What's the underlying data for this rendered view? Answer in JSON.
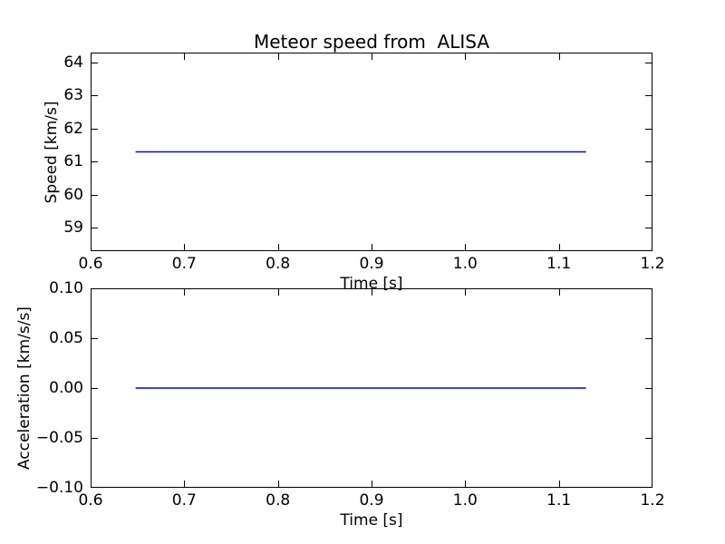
{
  "figure": {
    "background": "#ffffff",
    "line_color": "#0000ff",
    "axis_color": "#000000"
  },
  "chart_data": [
    {
      "type": "line",
      "title": "Meteor speed from  ALISA",
      "xlabel": "Time [s]",
      "ylabel": "Speed [km/s]",
      "xlim": [
        0.6,
        1.2
      ],
      "ylim": [
        58.3,
        64.3
      ],
      "xticks": [
        0.6,
        0.7,
        0.8,
        0.9,
        1.0,
        1.1,
        1.2
      ],
      "xtick_labels": [
        "0.6",
        "0.7",
        "0.8",
        "0.9",
        "1.0",
        "1.1",
        "1.2"
      ],
      "yticks": [
        59,
        60,
        61,
        62,
        63,
        64
      ],
      "ytick_labels": [
        "59",
        "60",
        "61",
        "62",
        "63",
        "64"
      ],
      "grid": false,
      "legend": null,
      "series": [
        {
          "name": "speed",
          "color": "#0000ff",
          "x": [
            0.648,
            1.129
          ],
          "y": [
            61.3,
            61.3
          ]
        }
      ]
    },
    {
      "type": "line",
      "title": "",
      "xlabel": "Time [s]",
      "ylabel": "Acceleration [km/s/s]",
      "xlim": [
        0.6,
        1.2
      ],
      "ylim": [
        -0.1,
        0.1
      ],
      "xticks": [
        0.6,
        0.7,
        0.8,
        0.9,
        1.0,
        1.1,
        1.2
      ],
      "xtick_labels": [
        "0.6",
        "0.7",
        "0.8",
        "0.9",
        "1.0",
        "1.1",
        "1.2"
      ],
      "yticks": [
        -0.1,
        -0.05,
        0,
        0.05,
        0.1
      ],
      "ytick_labels": [
        "−0.10",
        "−0.05",
        "0.00",
        "0.05",
        "0.10"
      ],
      "grid": false,
      "legend": null,
      "series": [
        {
          "name": "acceleration",
          "color": "#0000ff",
          "x": [
            0.648,
            1.129
          ],
          "y": [
            0.0,
            0.0
          ]
        }
      ]
    }
  ]
}
